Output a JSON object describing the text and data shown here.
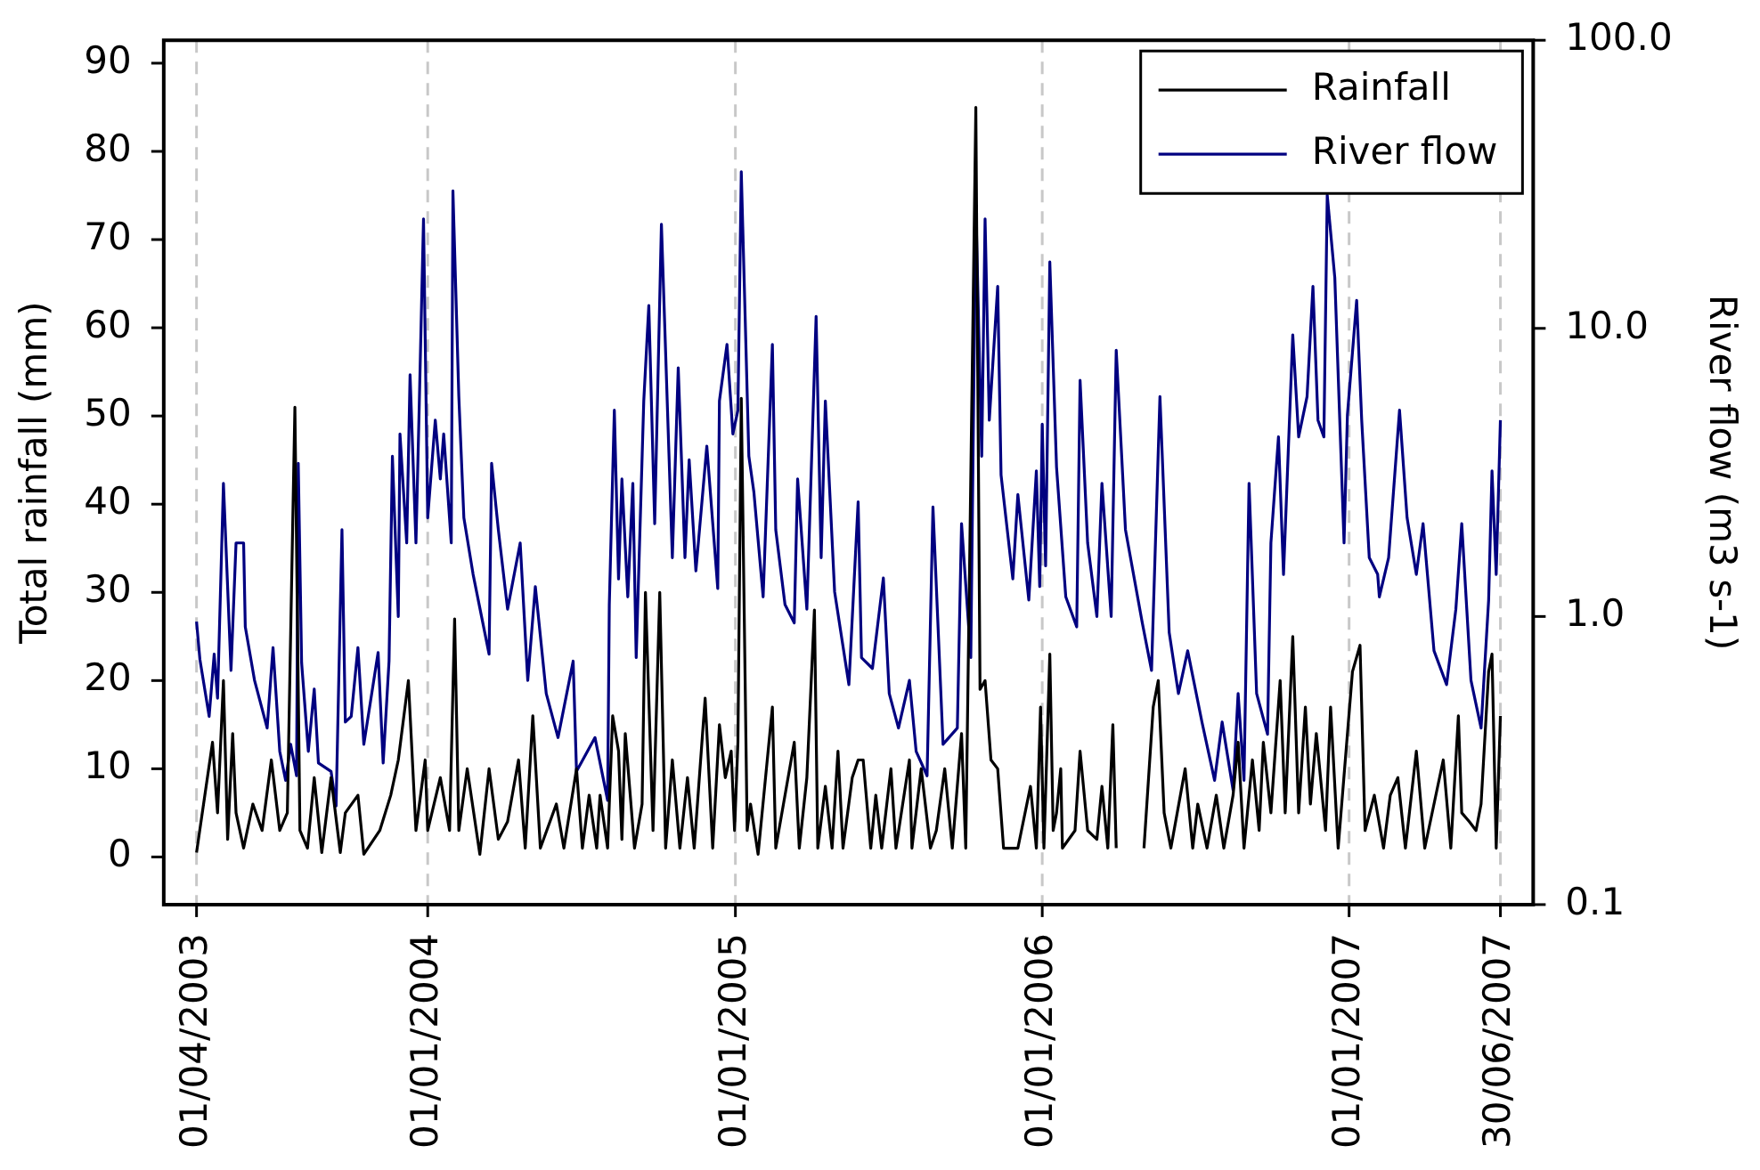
{
  "chart_data": {
    "type": "line",
    "ylabel": "Total rainfall (mm)",
    "y2label": "River flow (m3 s-1)",
    "xlim": [
      "2003-02-21",
      "2007-08-08"
    ],
    "xticks": [
      {
        "value": "2003-04-01",
        "label": "01/04/2003"
      },
      {
        "value": "2004-01-01",
        "label": "01/01/2004"
      },
      {
        "value": "2005-01-01",
        "label": "01/01/2005"
      },
      {
        "value": "2006-01-01",
        "label": "01/01/2006"
      },
      {
        "value": "2007-01-01",
        "label": "01/01/2007"
      },
      {
        "value": "2007-06-30",
        "label": "30/06/2007"
      }
    ],
    "ylim": [
      -5.4,
      92.6
    ],
    "yticks": [
      0,
      10,
      20,
      30,
      40,
      50,
      60,
      70,
      80,
      90
    ],
    "y2lim": [
      0.1,
      100
    ],
    "y2ticks": [
      {
        "value": 0.1,
        "label": "0.1"
      },
      {
        "value": 1,
        "label": "1.0"
      },
      {
        "value": 10,
        "label": "10.0"
      },
      {
        "value": 100,
        "label": "100.0"
      }
    ],
    "log": "y2",
    "grid": "x",
    "legend": "top right",
    "marker": "none",
    "line_style": "solid",
    "series": [
      {
        "name": "Rainfall",
        "color": "#000000",
        "x": [
          "2003-04-01",
          "2003-04-20",
          "2003-04-26",
          "2003-05-03",
          "2003-05-08",
          "2003-05-14",
          "2003-05-18",
          "2003-05-27",
          "2003-06-07",
          "2003-06-18",
          "2003-06-29",
          "2003-07-09",
          "2003-07-18",
          "2003-07-27",
          "2003-08-02",
          "2003-08-11",
          "2003-08-19",
          "2003-08-28",
          "2003-09-08",
          "2003-09-19",
          "2003-09-25",
          "2003-10-10",
          "2003-10-17",
          "2003-11-05",
          "2003-11-18",
          "2003-11-27",
          "2003-12-09",
          "2003-12-18",
          "2003-12-29",
          "2004-01-01",
          "2004-01-16",
          "2004-01-27",
          "2004-02-02",
          "2004-02-07",
          "2004-02-17",
          "2004-03-03",
          "2004-03-14",
          "2004-03-25",
          "2004-04-05",
          "2004-04-18",
          "2004-04-26",
          "2004-05-05",
          "2004-05-14",
          "2004-06-02",
          "2004-06-11",
          "2004-06-26",
          "2004-07-03",
          "2004-07-11",
          "2004-07-20",
          "2004-07-24",
          "2004-08-02",
          "2004-08-08",
          "2004-08-15",
          "2004-08-19",
          "2004-08-23",
          "2004-09-03",
          "2004-09-12",
          "2004-09-16",
          "2004-09-25",
          "2004-10-03",
          "2004-10-10",
          "2004-10-18",
          "2004-10-27",
          "2004-11-05",
          "2004-11-13",
          "2004-11-26",
          "2004-12-05",
          "2004-12-13",
          "2004-12-20",
          "2004-12-27",
          "2004-12-31",
          "2005-01-04",
          "2005-01-08",
          "2005-01-15",
          "2005-01-19",
          "2005-01-28",
          "2005-02-14",
          "2005-02-18",
          "2005-03-12",
          "2005-03-18",
          "2005-03-27",
          "2005-04-05",
          "2005-04-09",
          "2005-04-18",
          "2005-04-26",
          "2005-05-03",
          "2005-05-09",
          "2005-05-20",
          "2005-05-27",
          "2005-06-02",
          "2005-06-11",
          "2005-06-17",
          "2005-06-24",
          "2005-07-05",
          "2005-07-11",
          "2005-07-27",
          "2005-07-30",
          "2005-08-10",
          "2005-08-21",
          "2005-08-28",
          "2005-09-07",
          "2005-09-16",
          "2005-09-27",
          "2005-10-02",
          "2005-10-14",
          "2005-10-19",
          "2005-10-25",
          "2005-11-01",
          "2005-11-09",
          "2005-11-16",
          "2005-12-03",
          "2005-12-18",
          "2005-12-25",
          "2005-12-30",
          "2006-01-03",
          "2006-01-10",
          "2006-01-14",
          "2006-01-18",
          "2006-01-23",
          "2006-01-25",
          "2006-02-09",
          "2006-02-15",
          "2006-02-24",
          "2006-03-07",
          "2006-03-13",
          "2006-03-20",
          "2006-03-26",
          "2006-03-30",
          "2006-04-15",
          "2006-05-02",
          "2006-05-13",
          "2006-05-19",
          "2006-05-26",
          "2006-06-03",
          "2006-06-20",
          "2006-06-29",
          "2006-07-05",
          "2006-07-16",
          "2006-07-27",
          "2006-08-05",
          "2006-08-16",
          "2006-08-22",
          "2006-08-29",
          "2006-09-08",
          "2006-09-16",
          "2006-09-21",
          "2006-09-30",
          "2006-10-11",
          "2006-10-17",
          "2006-10-26",
          "2006-11-02",
          "2006-11-10",
          "2006-11-16",
          "2006-11-23",
          "2006-12-04",
          "2006-12-10",
          "2006-12-19",
          "2007-01-05",
          "2007-01-14",
          "2007-01-20",
          "2007-01-31",
          "2007-02-11",
          "2007-02-19",
          "2007-02-28",
          "2007-03-09",
          "2007-03-22",
          "2007-04-01",
          "2007-04-23",
          "2007-05-02",
          "2007-05-11",
          "2007-05-15",
          "2007-05-24",
          "2007-06-01",
          "2007-06-07",
          "2007-06-16",
          "2007-06-20",
          "2007-06-25",
          "2007-06-30"
        ],
        "values": [
          0.5,
          13,
          5,
          20,
          2,
          14,
          5,
          1,
          6,
          3,
          11,
          3,
          5,
          51,
          3,
          1,
          9,
          0.5,
          9,
          0.5,
          5,
          7,
          0.3,
          3,
          7,
          11,
          20,
          3,
          11,
          3,
          9,
          3,
          27,
          3,
          10,
          0.3,
          10,
          2,
          4,
          11,
          1,
          16,
          1,
          6,
          1,
          10,
          1,
          7,
          1,
          7,
          1,
          16,
          12,
          2,
          14,
          1,
          6,
          30,
          3,
          30,
          1,
          11,
          1,
          9,
          1,
          18,
          1,
          15,
          9,
          12,
          3,
          13,
          52,
          3,
          6,
          0.3,
          17,
          1,
          13,
          1,
          9,
          28,
          1,
          8,
          1,
          12,
          1,
          9,
          11,
          11,
          1,
          7,
          1,
          10,
          1,
          11,
          1,
          10,
          1,
          3,
          10,
          1,
          14,
          1,
          85,
          19,
          20,
          11,
          10,
          1,
          1,
          8,
          1,
          17,
          1,
          23,
          3,
          5,
          10,
          1,
          3,
          12,
          3,
          2,
          8,
          1,
          15,
          1,
          null,
          1,
          17,
          20,
          5,
          1,
          10,
          1,
          6,
          1,
          7,
          1,
          7,
          13,
          1,
          11,
          3,
          13,
          5,
          20,
          5,
          25,
          5,
          17,
          6,
          14,
          3,
          17,
          1,
          21,
          24,
          3,
          7,
          1,
          7,
          9,
          1,
          12,
          1,
          11,
          1,
          16,
          5,
          4,
          3,
          6,
          21,
          23,
          1,
          16
        ]
      },
      {
        "name": "River flow",
        "color": "#000080",
        "axis": "y2",
        "x": [
          "2003-04-01",
          "2003-04-05",
          "2003-04-16",
          "2003-04-22",
          "2003-04-26",
          "2003-05-03",
          "2003-05-12",
          "2003-05-18",
          "2003-05-27",
          "2003-05-29",
          "2003-06-09",
          "2003-06-24",
          "2003-07-01",
          "2003-07-09",
          "2003-07-16",
          "2003-07-22",
          "2003-07-29",
          "2003-07-31",
          "2003-08-04",
          "2003-08-12",
          "2003-08-19",
          "2003-08-24",
          "2003-09-08",
          "2003-09-14",
          "2003-09-21",
          "2003-09-25",
          "2003-10-02",
          "2003-10-10",
          "2003-10-17",
          "2003-11-03",
          "2003-11-09",
          "2003-11-16",
          "2003-11-20",
          "2003-11-27",
          "2003-11-29",
          "2003-12-07",
          "2003-12-11",
          "2003-12-18",
          "2003-12-22",
          "2003-12-27",
          "2004-01-01",
          "2004-01-10",
          "2004-01-16",
          "2004-01-20",
          "2004-01-29",
          "2004-01-31",
          "2004-02-07",
          "2004-02-13",
          "2004-02-24",
          "2004-03-14",
          "2004-03-17",
          "2004-03-25",
          "2004-04-05",
          "2004-04-20",
          "2004-04-29",
          "2004-05-08",
          "2004-05-21",
          "2004-06-04",
          "2004-06-22",
          "2004-06-26",
          "2004-07-18",
          "2004-08-02",
          "2004-08-04",
          "2004-08-10",
          "2004-08-15",
          "2004-08-19",
          "2004-08-26",
          "2004-09-01",
          "2004-09-05",
          "2004-09-14",
          "2004-09-20",
          "2004-09-27",
          "2004-10-05",
          "2004-10-18",
          "2004-10-25",
          "2004-11-02",
          "2004-11-07",
          "2004-11-15",
          "2004-11-28",
          "2004-12-11",
          "2004-12-13",
          "2004-12-22",
          "2004-12-29",
          "2005-01-04",
          "2005-01-08",
          "2005-01-17",
          "2005-01-23",
          "2005-02-03",
          "2005-02-14",
          "2005-02-18",
          "2005-03-01",
          "2005-03-12",
          "2005-03-16",
          "2005-03-27",
          "2005-04-07",
          "2005-04-13",
          "2005-04-18",
          "2005-04-29",
          "2005-05-16",
          "2005-05-27",
          "2005-05-31",
          "2005-06-13",
          "2005-06-26",
          "2005-07-03",
          "2005-07-14",
          "2005-07-27",
          "2005-08-04",
          "2005-08-17",
          "2005-08-24",
          "2005-09-05",
          "2005-09-22",
          "2005-09-27",
          "2005-10-08",
          "2005-10-14",
          "2005-10-21",
          "2005-10-25",
          "2005-10-30",
          "2005-11-09",
          "2005-11-13",
          "2005-11-27",
          "2005-12-03",
          "2005-12-16",
          "2005-12-25",
          "2005-12-29",
          "2006-01-01",
          "2006-01-05",
          "2006-01-10",
          "2006-01-18",
          "2006-01-29",
          "2006-02-11",
          "2006-02-15",
          "2006-02-24",
          "2006-03-07",
          "2006-03-13",
          "2006-03-24",
          "2006-03-30",
          "2006-04-10",
          "2006-04-30",
          "2006-05-11",
          "2006-05-21",
          "2006-06-01",
          "2006-06-12",
          "2006-06-23",
          "2006-07-10",
          "2006-07-25",
          "2006-08-03",
          "2006-08-16",
          "2006-08-22",
          "2006-08-29",
          "2006-09-04",
          "2006-09-13",
          "2006-09-26",
          "2006-09-30",
          "2006-10-09",
          "2006-10-15",
          "2006-10-26",
          "2006-11-02",
          "2006-11-12",
          "2006-11-19",
          "2006-11-25",
          "2006-12-02",
          "2006-12-06",
          "2006-12-15",
          "2006-12-26",
          "2006-12-30",
          "2007-01-10",
          "2007-01-16",
          "2007-01-25",
          "2007-02-04",
          "2007-02-06",
          "2007-02-17",
          "2007-03-02",
          "2007-03-11",
          "2007-03-22",
          "2007-03-30",
          "2007-04-12",
          "2007-04-27",
          "2007-05-08",
          "2007-05-15",
          "2007-05-26",
          "2007-06-07",
          "2007-06-16",
          "2007-06-20",
          "2007-06-25",
          "2007-06-30"
        ],
        "values": [
          0.96,
          0.71,
          0.45,
          0.74,
          0.52,
          2.9,
          0.65,
          1.8,
          1.8,
          0.92,
          0.6,
          0.41,
          0.78,
          0.34,
          0.27,
          0.36,
          0.28,
          3.4,
          0.69,
          0.34,
          0.56,
          0.31,
          0.29,
          0.22,
          2,
          0.43,
          0.45,
          0.78,
          0.36,
          0.75,
          0.31,
          0.7,
          3.6,
          1,
          4.3,
          1.8,
          6.9,
          1.8,
          5.5,
          24,
          2.2,
          4.8,
          3,
          4.3,
          1.8,
          30,
          5.8,
          2.2,
          1.4,
          0.74,
          3.4,
          2,
          1.06,
          1.8,
          0.6,
          1.27,
          0.54,
          0.38,
          0.7,
          0.29,
          0.38,
          0.23,
          1.1,
          5.2,
          1.35,
          3,
          1.17,
          2.9,
          0.72,
          5.6,
          12,
          2.1,
          23,
          1.6,
          7.3,
          1.6,
          3.5,
          1.44,
          3.9,
          1.25,
          5.6,
          8.8,
          4.3,
          5.2,
          35,
          3.6,
          2.7,
          1.17,
          8.8,
          2,
          1.1,
          0.95,
          3,
          1.06,
          11,
          1.6,
          5.6,
          1.22,
          0.58,
          2.5,
          0.72,
          0.66,
          1.36,
          0.54,
          0.41,
          0.6,
          0.34,
          0.28,
          2.4,
          0.36,
          0.41,
          2.1,
          0.72,
          27,
          3.6,
          24,
          4.8,
          14,
          3.1,
          1.35,
          2.65,
          1.14,
          3.2,
          1.27,
          4.65,
          1.5,
          17,
          3.3,
          1.17,
          0.92,
          6.6,
          1.8,
          1,
          2.9,
          1,
          8.4,
          2,
          0.95,
          0.65,
          5.8,
          0.88,
          0.54,
          0.76,
          0.43,
          0.27,
          0.43,
          0.25,
          0.54,
          0.27,
          2.9,
          0.54,
          0.39,
          1.8,
          4.2,
          1.4,
          9.5,
          4.2,
          5.8,
          14,
          4.8,
          4.2,
          29,
          15,
          1.8,
          5,
          12.5,
          4.8,
          1.6,
          1.4,
          1.17,
          1.6,
          5.2,
          2.2,
          1.4,
          2.1,
          0.76,
          0.58,
          1.06,
          2.1,
          0.6,
          0.41,
          1.14,
          3.2,
          1.4,
          4.8
        ]
      }
    ]
  }
}
